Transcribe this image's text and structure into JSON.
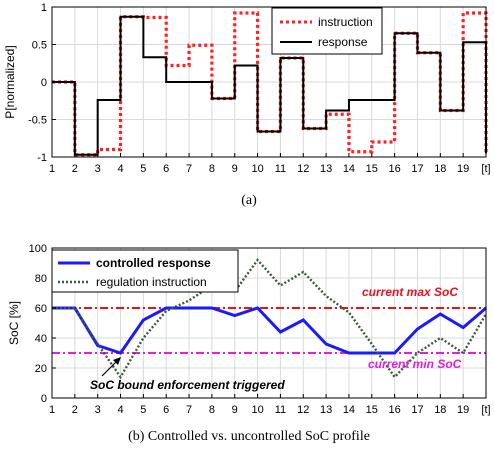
{
  "chart_data": [
    {
      "type": "line",
      "step": true,
      "x": [
        1,
        2,
        3,
        4,
        5,
        6,
        7,
        8,
        9,
        10,
        11,
        12,
        13,
        14,
        15,
        16,
        17,
        18,
        19,
        20
      ],
      "xlim": [
        1,
        20
      ],
      "ylim": [
        -1,
        1
      ],
      "xticks": [
        "1",
        "2",
        "3",
        "4",
        "5",
        "6",
        "7",
        "8",
        "9",
        "10",
        "11",
        "12",
        "13",
        "14",
        "15",
        "16",
        "17",
        "18",
        "19",
        "[t]"
      ],
      "yticks": [
        "-1",
        "-0.5",
        "0",
        "0.5",
        "1"
      ],
      "ylabel": "P[normalized]",
      "grid": true,
      "legend_position": "top-right",
      "caption": "(a)",
      "series": [
        {
          "name": "instruction",
          "color": "#ff2020",
          "style": "dotted",
          "values": [
            0,
            -0.97,
            -0.9,
            0.87,
            0.86,
            0.22,
            0.49,
            -0.22,
            0.92,
            -0.66,
            0.32,
            -0.62,
            -0.43,
            -0.93,
            -0.8,
            0.65,
            0.39,
            -0.38,
            0.92,
            -0.95
          ]
        },
        {
          "name": "response",
          "color": "#000000",
          "style": "solid",
          "values": [
            0,
            -0.97,
            -0.24,
            0.87,
            0.33,
            0.0,
            0.0,
            -0.22,
            0.22,
            -0.66,
            0.32,
            -0.62,
            -0.38,
            -0.24,
            -0.24,
            0.65,
            0.39,
            -0.38,
            0.53,
            -0.95
          ]
        }
      ]
    },
    {
      "type": "line",
      "x": [
        1,
        2,
        3,
        4,
        5,
        6,
        7,
        8,
        9,
        10,
        11,
        12,
        13,
        14,
        15,
        16,
        17,
        18,
        19,
        20
      ],
      "xlim": [
        1,
        20
      ],
      "ylim": [
        0,
        100
      ],
      "xticks": [
        "1",
        "2",
        "3",
        "4",
        "5",
        "6",
        "7",
        "8",
        "9",
        "10",
        "11",
        "12",
        "13",
        "14",
        "15",
        "16",
        "17",
        "18",
        "19",
        "[t]"
      ],
      "yticks": [
        "0",
        "20",
        "40",
        "60",
        "80",
        "100"
      ],
      "ylabel": "SoC [%]",
      "grid": true,
      "legend_position": "top-left",
      "caption": "(b) Controlled vs. uncontrolled SoC profile",
      "series": [
        {
          "name": "controlled response",
          "color": "#1a1aff",
          "style": "solid",
          "values": [
            60,
            60,
            35,
            30,
            52,
            60,
            60,
            60,
            55,
            60,
            44,
            52,
            36,
            30,
            30,
            30,
            46,
            56,
            47,
            60
          ]
        },
        {
          "name": "regulation instruction",
          "color": "#3a5a3a",
          "style": "dotted",
          "values": [
            60,
            60,
            36,
            14,
            40,
            58,
            65,
            75,
            71,
            92,
            75,
            84,
            68,
            57,
            36,
            14,
            30,
            40,
            30,
            56
          ]
        }
      ],
      "reference_lines": [
        {
          "value": 60,
          "label": "current max SoC",
          "color": "#e8141c"
        },
        {
          "value": 30,
          "label": "current min SoC",
          "color": "#e020e0"
        }
      ],
      "annotation": {
        "text": "SoC bound enforcement triggered",
        "x": 4,
        "y": 30
      }
    }
  ]
}
